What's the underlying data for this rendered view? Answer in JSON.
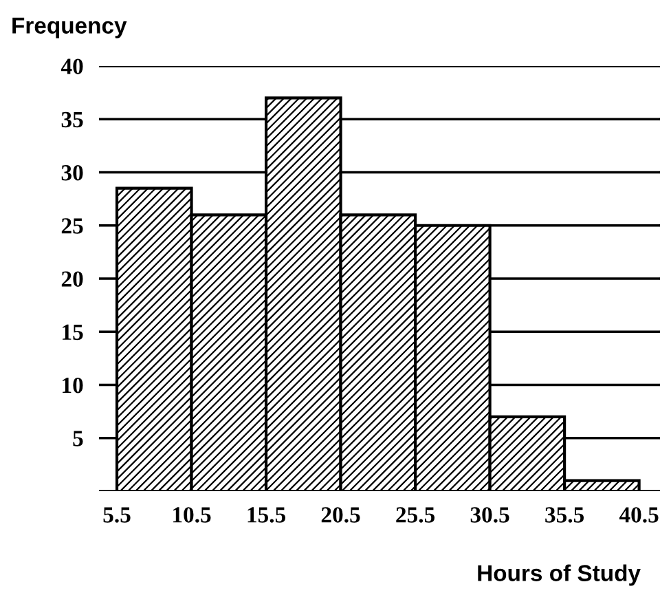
{
  "chart_data": {
    "type": "histogram",
    "xlabel": "Hours of Study",
    "ylabel": "Frequency",
    "bins": [
      5.5,
      10.5,
      15.5,
      20.5,
      25.5,
      30.5,
      35.5,
      40.5
    ],
    "values": [
      28.5,
      26,
      37,
      26,
      25,
      7,
      1
    ],
    "color": "#000000",
    "xlim": [
      4.3,
      41.9
    ],
    "xticks": [
      5.5,
      10.5,
      15.5,
      20.5,
      25.5,
      30.5,
      35.5,
      40.5
    ],
    "ylim": [
      0,
      40
    ],
    "yticks": [
      {
        "value": 0,
        "label": null
      },
      5,
      10,
      15,
      20,
      25,
      30,
      35,
      40
    ],
    "grid": "y"
  }
}
